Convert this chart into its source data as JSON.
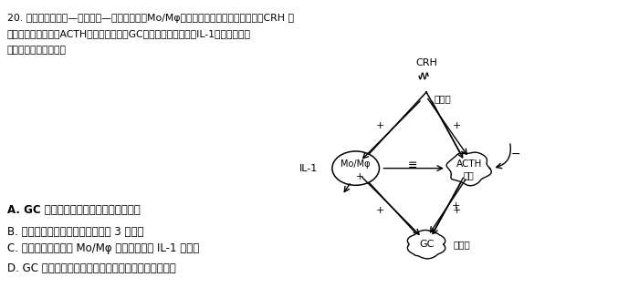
{
  "bg_color": "#ffffff",
  "q_line1": "20. 如图表示下丘脑—垂体前叶—肾上腺皮质与Mo/Mφ（一种吱噬细胞）环路。其中，CRH 表",
  "q_line2": "示促肾碗释放激素，ACTH为促皮质激素，GC为肾上腺皮质激素。IL-1为一种淡巴因",
  "q_line3": "子。下列叙述错误的是",
  "opt_A": "A. GC 的分泌存在分级调节和负反馈调节",
  "opt_B": "B. 该图显示垂体细胞表面至少存在 3 种受体",
  "opt_C": "C. 垂体可以通过抑制 Mo/Mφ 的功能来减少 IL-1 的释放",
  "opt_D": "D. GC 分泌过多会增强人体免疫，容易引发自身免疫病",
  "label_crh": "CRH",
  "label_hypo": "下丘脑",
  "label_mo": "Mo/Mφ",
  "label_il1": "IL-1",
  "label_acth": "ACTH",
  "label_pituitary": "垂体",
  "label_gc": "GC",
  "label_adrenal": "肾上腺"
}
